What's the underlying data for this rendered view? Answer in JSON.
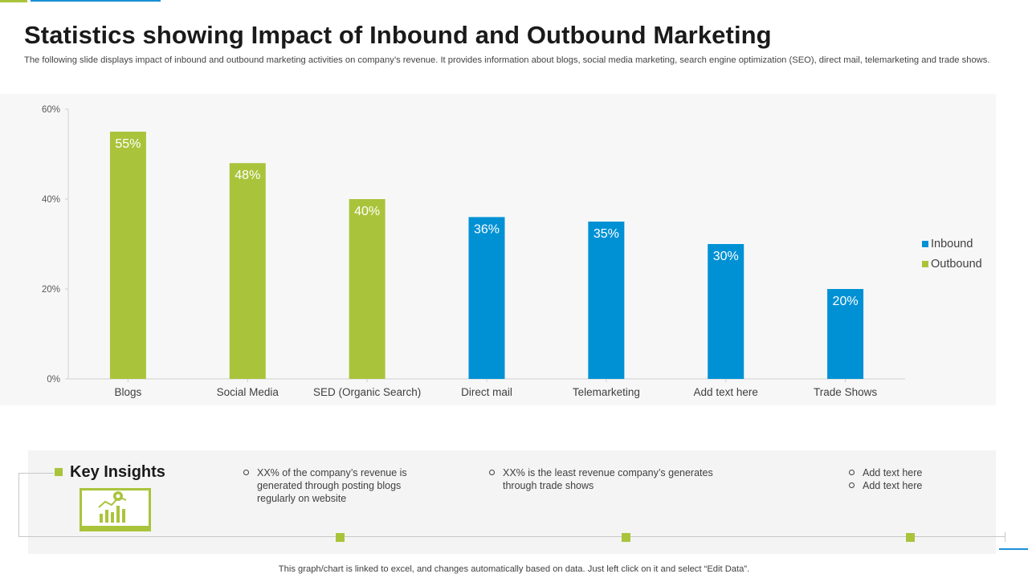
{
  "slide": {
    "title": "Statistics showing Impact of Inbound and Outbound Marketing",
    "subtitle": "The following slide displays impact of inbound and outbound marketing activities on company’s revenue. It provides information about blogs, social media marketing, search engine optimization (SEO), direct mail, telemarketing and trade shows.",
    "footer": "This graph/chart is linked to excel,  and changes automatically based on data. Just left click on it and select “Edit Data”."
  },
  "colors": {
    "inbound": "#0091d5",
    "outbound": "#a9c43b",
    "accent_blue": "#1a8fd6",
    "accent_green": "#a9c43b"
  },
  "chart_data": {
    "type": "bar",
    "categories": [
      "Blogs",
      "Social Media",
      "SED (Organic Search)",
      "Direct mail",
      "Telemarketing",
      "Add text here",
      "Trade Shows"
    ],
    "values": [
      55,
      48,
      40,
      36,
      35,
      30,
      20
    ],
    "value_labels": [
      "55%",
      "48%",
      "40%",
      "36%",
      "35%",
      "30%",
      "20%"
    ],
    "series_of_category": [
      "Outbound",
      "Outbound",
      "Outbound",
      "Inbound",
      "Inbound",
      "Inbound",
      "Inbound"
    ],
    "legend": [
      {
        "name": "Inbound",
        "color": "#0091d5"
      },
      {
        "name": "Outbound",
        "color": "#a9c43b"
      }
    ],
    "legend_position": "right",
    "ylim": [
      0,
      60
    ],
    "yticks": [
      0,
      20,
      40,
      60
    ],
    "ytick_labels": [
      "0%",
      "20%",
      "40%",
      "60%"
    ],
    "grid": false,
    "title": "",
    "xlabel": "",
    "ylabel": ""
  },
  "insights": {
    "title": "Key Insights",
    "icon": "chart-presentation-icon",
    "col1": [
      "XX%  of the company’s revenue  is generated through  posting blogs regularly  on website"
    ],
    "col2": [
      "XX%  is the least revenue  company’s generates through trade shows"
    ],
    "col3": [
      "Add text here",
      "Add text here"
    ]
  }
}
